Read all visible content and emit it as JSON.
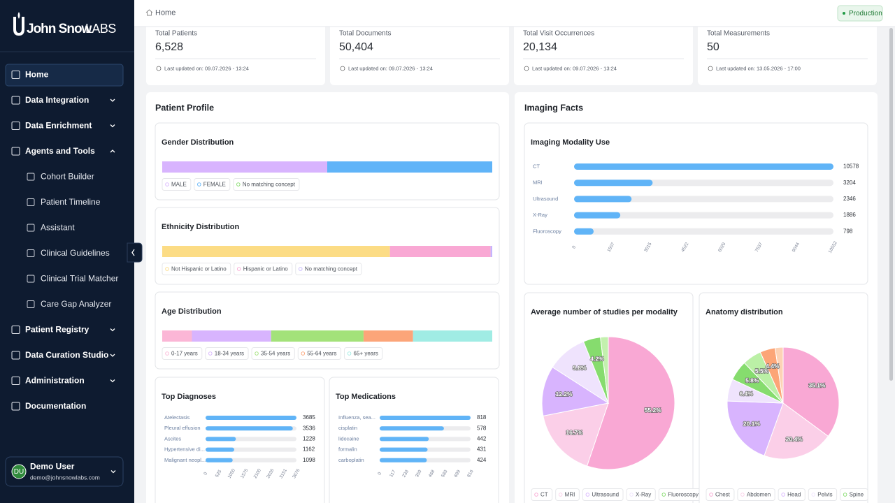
{
  "brand": {
    "name": "John Snow",
    "suffix": "LABS"
  },
  "nav": [
    {
      "label": "Home"
    },
    {
      "label": "Data Integration"
    },
    {
      "label": "Data Enrichment"
    },
    {
      "label": "Agents and Tools",
      "children": [
        "Cohort Builder",
        "Patient Timeline",
        "Assistant",
        "Clinical Guidelines",
        "Clinical Trial Matcher",
        "Care Gap Analyzer"
      ]
    },
    {
      "label": "Patient Registry"
    },
    {
      "label": "Data Curation Studio"
    },
    {
      "label": "Administration"
    },
    {
      "label": "Documentation"
    }
  ],
  "user": {
    "initials": "DU",
    "name": "Demo User",
    "email": "demo@johnsnowlabs.com"
  },
  "breadcrumb": "Home",
  "environment": "Production",
  "stats": [
    {
      "label": "Total Patients",
      "value": "6,528",
      "updated": "Last updated on: 09.07.2026 - 13:24"
    },
    {
      "label": "Total Documents",
      "value": "50,404",
      "updated": "Last updated on: 09.07.2026 - 13:24"
    },
    {
      "label": "Total Visit Occurrences",
      "value": "20,134",
      "updated": "Last updated on: 09.07.2026 - 13:24"
    },
    {
      "label": "Total Measurements",
      "value": "50",
      "updated": "Last updated on: 13.05.2026 - 17:00"
    }
  ],
  "patient_profile": {
    "title": "Patient Profile",
    "distributions": [
      {
        "type": "stacked-bar",
        "title": "Gender Distribution",
        "categories": [
          "MALE",
          "FEMALE",
          "No matching concept"
        ],
        "values": [
          50,
          50,
          0
        ],
        "colors": [
          "#d8b4fe",
          "#60b4f8",
          "#86dc6e"
        ]
      },
      {
        "type": "stacked-bar",
        "title": "Ethnicity Distribution",
        "categories": [
          "Not Hispanic or Latino",
          "Hispanic or Latino",
          "No matching concept"
        ],
        "values": [
          69,
          30.5,
          0.5
        ],
        "colors": [
          "#fcdc85",
          "#f9a8d4",
          "#c4b5fd"
        ]
      },
      {
        "type": "stacked-bar",
        "title": "Age Distribution",
        "categories": [
          "0-17 years",
          "18-34 years",
          "35-54 years",
          "55-64 years",
          "65+ years"
        ],
        "values": [
          9,
          24,
          28,
          15,
          24
        ],
        "colors": [
          "#fbb6d6",
          "#d8b4fe",
          "#a3e27a",
          "#fca579",
          "#a0ece4"
        ]
      }
    ],
    "top_lists": [
      {
        "type": "bar",
        "title": "Top Diagnoses",
        "categories": [
          "Atelectasis",
          "Pleural effusion",
          "Ascites",
          "Hypertensive di...",
          "Malignant neopl..."
        ],
        "values": [
          3685,
          3536,
          1228,
          1162,
          1098
        ],
        "xlim": [
          0,
          3685
        ],
        "xticks": [
          0,
          525,
          1050,
          1575,
          2100,
          2626,
          3151,
          3676
        ],
        "color": "#60b4f7"
      },
      {
        "type": "bar",
        "title": "Top Medications",
        "categories": [
          "Influenza, sea...",
          "cisplatin",
          "lidocaine",
          "formalin",
          "carboplatin"
        ],
        "values": [
          818,
          578,
          442,
          431,
          424
        ],
        "xlim": [
          0,
          818
        ],
        "xticks": [
          0,
          117,
          233,
          350,
          468,
          583,
          699,
          816
        ],
        "color": "#60b4f7"
      }
    ]
  },
  "imaging": {
    "title": "Imaging Facts",
    "modality": {
      "type": "bar",
      "title": "Imaging Modality Use",
      "categories": [
        "CT",
        "MRI",
        "Ultrasound",
        "X-Ray",
        "Fluoroscopy"
      ],
      "values": [
        10578,
        3204,
        2346,
        1886,
        798
      ],
      "xlim": [
        0,
        10578
      ],
      "xticks": [
        0,
        1507,
        3015,
        4522,
        6029,
        7537,
        9044,
        10552
      ],
      "color": "#60b4f7"
    },
    "pies": [
      {
        "type": "pie",
        "title": "Average number of studies per modality",
        "categories": [
          "CT",
          "MRI",
          "Ultrasound",
          "X-Ray",
          "Fluoroscopy",
          null
        ],
        "values": [
          55.2,
          16.7,
          12.2,
          9.8,
          4.2,
          1.9
        ],
        "value_labels": [
          "55.2%",
          "16.7%",
          "12.2%",
          "9.8%",
          "4.2%",
          null
        ],
        "colors": [
          "#f9a8d4",
          "#fbcfe8",
          "#d8b4fe",
          "#efe3fd",
          "#86dc6e",
          "#c3f0ae"
        ]
      },
      {
        "type": "pie",
        "title": "Anatomy distribution",
        "categories": [
          "Chest",
          "Abdomen",
          "Head",
          "Pelvis",
          "Spine",
          null,
          null,
          null
        ],
        "values": [
          35.1,
          20.4,
          20.1,
          6.4,
          5.8,
          5.5,
          4.4,
          2.3
        ],
        "value_labels": [
          "35.1%",
          "20.4%",
          "20.1%",
          "6.4%",
          "5.8%",
          "5.5%",
          "4.4%",
          null
        ],
        "colors": [
          "#f9a8d4",
          "#fbcfe8",
          "#d8b4fe",
          "#efe3fd",
          "#86dc6e",
          "#bbf0a6",
          "#fca577",
          "#fdd2b5"
        ]
      }
    ]
  }
}
